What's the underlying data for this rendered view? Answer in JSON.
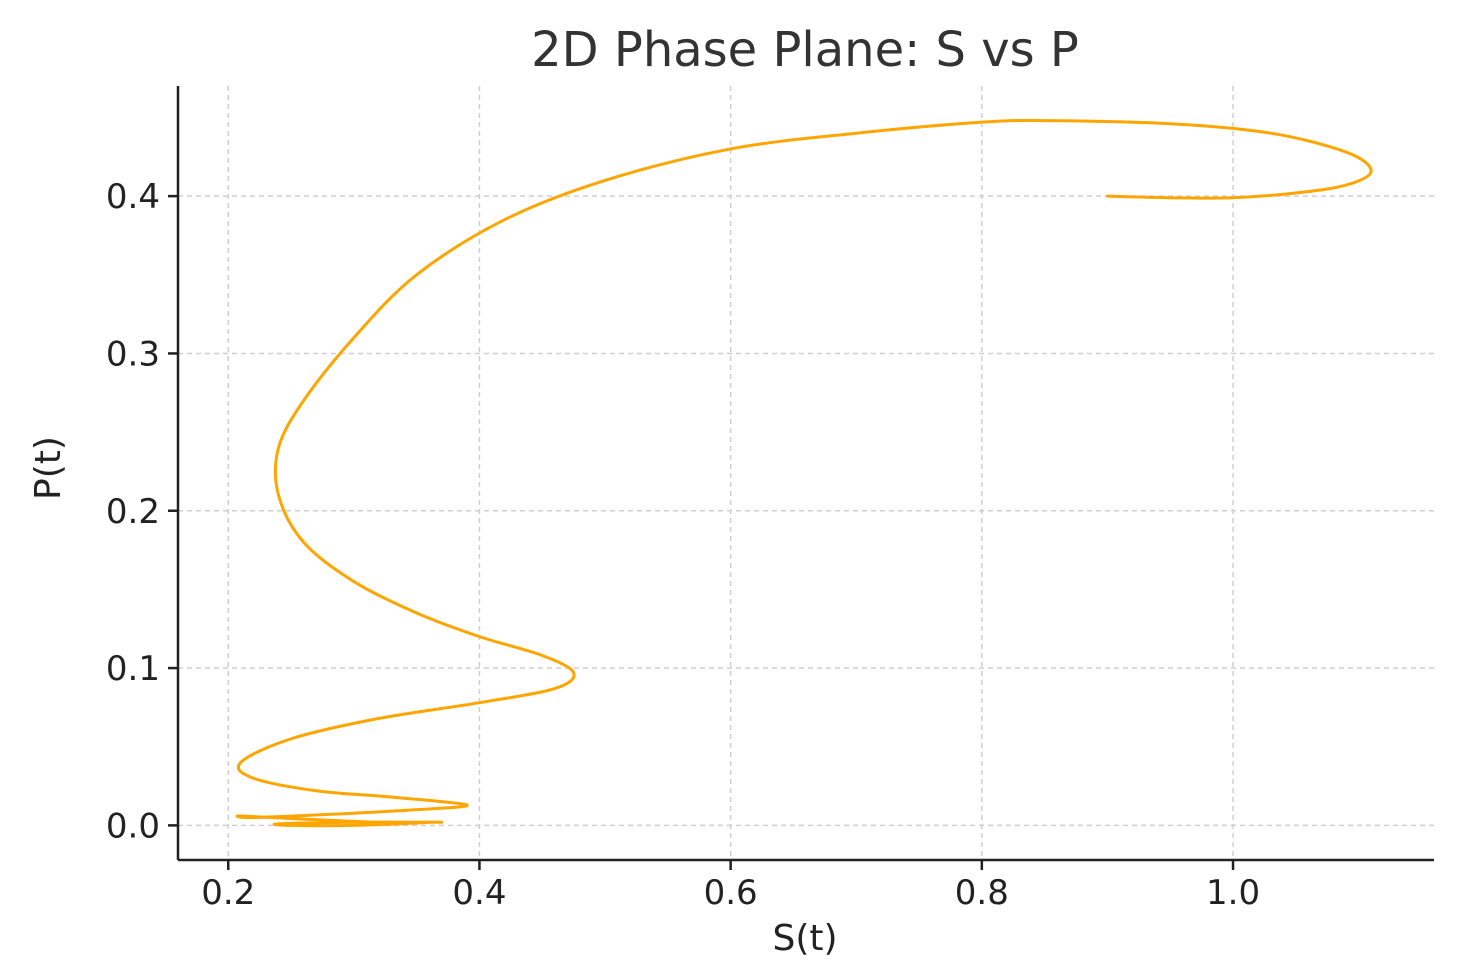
{
  "chart_data": {
    "type": "line",
    "title": "2D Phase Plane: S vs P",
    "xlabel": "S(t)",
    "ylabel": "P(t)",
    "xlim": [
      0.16,
      1.16
    ],
    "ylim": [
      -0.022,
      0.47
    ],
    "x_ticks": [
      0.2,
      0.4,
      0.6,
      0.8,
      1.0
    ],
    "x_tick_labels": [
      "0.2",
      "0.4",
      "0.6",
      "0.8",
      "1.0"
    ],
    "y_ticks": [
      0.0,
      0.1,
      0.2,
      0.3,
      0.4
    ],
    "y_tick_labels": [
      "0.0",
      "0.1",
      "0.2",
      "0.3",
      "0.4"
    ],
    "grid": true,
    "series": [
      {
        "color": "#FFA500",
        "x": [
          0.9,
          0.95,
          1.0,
          1.05,
          1.09,
          1.11,
          1.09,
          1.03,
          0.95,
          0.85,
          0.8,
          0.7,
          0.6,
          0.5,
          0.42,
          0.35,
          0.3,
          0.26,
          0.24,
          0.24,
          0.26,
          0.3,
          0.35,
          0.4,
          0.45,
          0.475,
          0.46,
          0.4,
          0.32,
          0.25,
          0.21,
          0.22,
          0.27,
          0.33,
          0.39,
          0.35,
          0.28,
          0.22,
          0.21,
          0.26,
          0.32,
          0.36,
          0.3,
          0.25,
          0.24,
          0.3,
          0.37
        ],
        "y": [
          0.4,
          0.399,
          0.399,
          0.402,
          0.407,
          0.416,
          0.428,
          0.44,
          0.446,
          0.448,
          0.447,
          0.44,
          0.43,
          0.41,
          0.385,
          0.35,
          0.31,
          0.27,
          0.24,
          0.21,
          0.18,
          0.155,
          0.135,
          0.12,
          0.108,
          0.097,
          0.087,
          0.078,
          0.068,
          0.055,
          0.04,
          0.03,
          0.022,
          0.018,
          0.013,
          0.01,
          0.007,
          0.005,
          0.006,
          0.004,
          0.002,
          0.002,
          0.0,
          0.0,
          0.001,
          0.002,
          0.002
        ]
      }
    ]
  }
}
